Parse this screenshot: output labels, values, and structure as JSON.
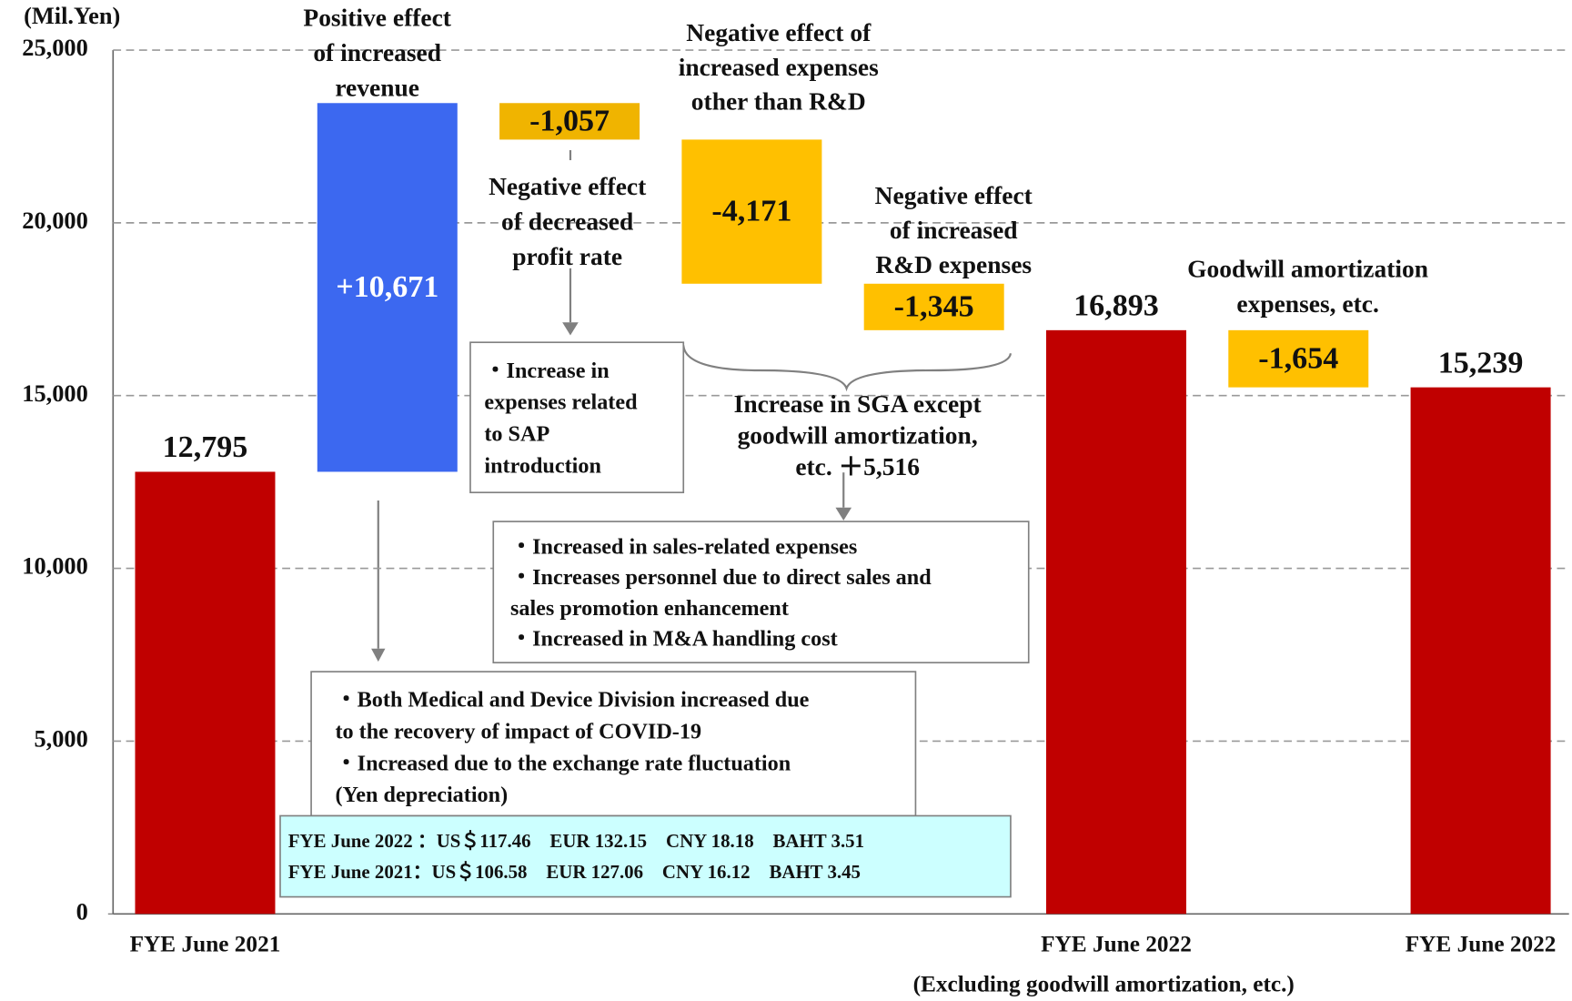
{
  "chart_data": {
    "type": "waterfall",
    "axis_label": "(Mil.Yen)",
    "categories": [
      "FYE June 2021",
      null,
      null,
      null,
      null,
      "FYE June 2022",
      null,
      "FYE June 2022"
    ],
    "category_sublabel": "(Excluding goodwill amortization, etc.)",
    "kinds": [
      "total",
      "delta",
      "delta",
      "delta",
      "delta",
      "total",
      "delta",
      "total"
    ],
    "values": [
      12795,
      10671,
      -1057,
      -4171,
      -1345,
      16893,
      -1654,
      15239
    ],
    "value_labels": [
      "12,795",
      "+10,671",
      "-1,057",
      "-4,171",
      "-1,345",
      "16,893",
      "-1,654",
      "15,239"
    ],
    "colors": [
      "#c00000",
      "#3c68f0",
      "#f0b400",
      "#ffc000",
      "#ffc000",
      "#c00000",
      "#ffc000",
      "#c00000"
    ],
    "ylim": [
      0,
      25000
    ],
    "yticks": [
      0,
      {
        "value": 5000,
        "label": "5,000"
      },
      {
        "value": 10000,
        "label": "10,000"
      },
      {
        "value": 15000,
        "label": "15,000"
      },
      {
        "value": 20000,
        "label": "20,000"
      },
      {
        "value": 25000,
        "label": "25,000"
      }
    ],
    "grid": true,
    "annotations": [
      {
        "lines": [
          "Positive effect",
          "of increased",
          "revenue"
        ]
      },
      {
        "lines": [
          "Negative effect",
          "of decreased",
          "profit rate"
        ]
      },
      {
        "lines": [
          "Negative effect of",
          "increased expenses",
          "other than R&D"
        ]
      },
      {
        "lines": [
          "Negative effect",
          "of increased",
          "R&D expenses"
        ]
      },
      {
        "lines": [
          "Goodwill amortization",
          "expenses, etc."
        ]
      },
      {
        "lines": [
          "Increase in SGA except",
          "goodwill amortization,",
          "etc. ＋5,516"
        ]
      }
    ],
    "notes": [
      {
        "lines": [
          "・Increase in",
          "expenses related",
          "to SAP",
          "introduction"
        ]
      },
      {
        "lines": [
          "・Increased in sales-related expenses",
          "・Increases personnel due to direct sales and",
          "sales promotion enhancement",
          "・Increased in M&A handling cost"
        ]
      },
      {
        "lines": [
          "・Both Medical and Device Division increased due",
          "to the recovery of impact of COVID-19",
          "・Increased due to the exchange rate fluctuation",
          "(Yen depreciation)"
        ]
      },
      {
        "lines": [
          "FYE June 2022 ：US＄117.46　EUR 132.15　CNY 18.18　BAHT 3.51",
          "FYE June 2021：US＄106.58　EUR 127.06　CNY 16.12　BAHT 3.45"
        ]
      }
    ]
  }
}
